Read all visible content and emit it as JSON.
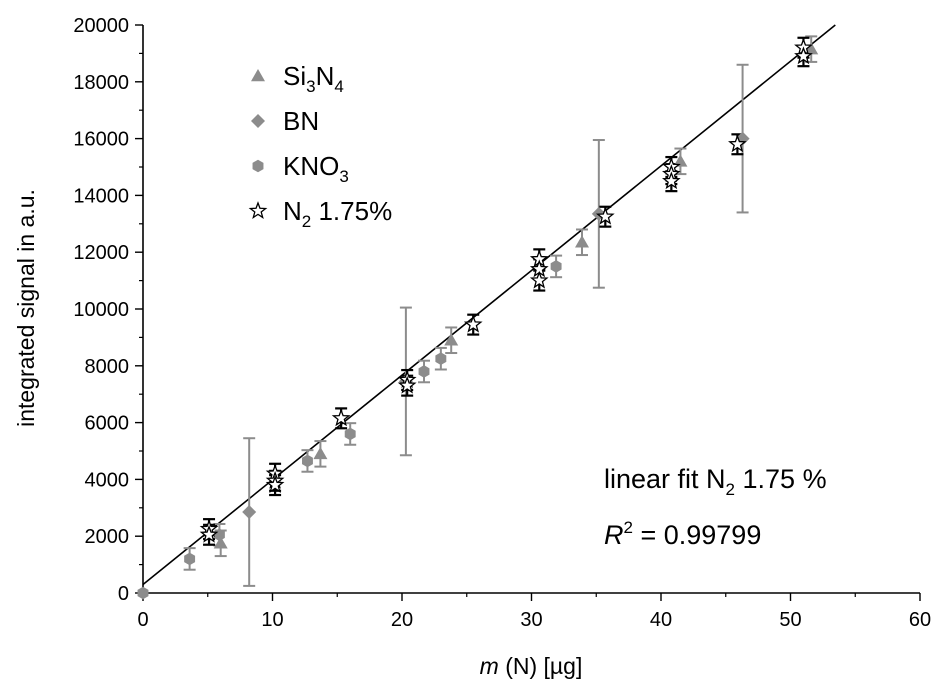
{
  "chart_data": {
    "type": "scatter",
    "xlabel": {
      "italic": "m",
      "rest": " (N) [µg]"
    },
    "ylabel": "integrated signal in a.u.",
    "xlim": [
      0,
      60
    ],
    "ylim": [
      0,
      20000
    ],
    "x_ticks": [
      0,
      10,
      20,
      30,
      40,
      50,
      60
    ],
    "y_ticks": [
      0,
      2000,
      4000,
      6000,
      8000,
      10000,
      12000,
      14000,
      16000,
      18000,
      20000
    ],
    "x_tick_labels": [
      "0",
      "10",
      "20",
      "30",
      "40",
      "50",
      "60"
    ],
    "y_tick_labels": [
      "0",
      "2000",
      "4000",
      "6000",
      "8000",
      "10000",
      "12000",
      "14000",
      "16000",
      "18000",
      "20000"
    ],
    "grid": false,
    "legend_position": "top-left",
    "series": [
      {
        "name": {
          "base": "Si",
          "sub1": "3",
          "mid": "N",
          "sub2": "4"
        },
        "marker": "triangle",
        "color": "#8c8c8c",
        "points": [
          {
            "x": 6.0,
            "y": 1750,
            "err": 450
          },
          {
            "x": 13.7,
            "y": 4900,
            "err": 450
          },
          {
            "x": 23.8,
            "y": 8900,
            "err": 450
          },
          {
            "x": 33.9,
            "y": 12350,
            "err": 450
          },
          {
            "x": 41.5,
            "y": 15200,
            "err": 450
          },
          {
            "x": 51.6,
            "y": 19150,
            "err": 450
          }
        ]
      },
      {
        "name": {
          "base": "BN",
          "sub1": "",
          "mid": "",
          "sub2": ""
        },
        "marker": "diamond",
        "color": "#8c8c8c",
        "points": [
          {
            "x": 8.2,
            "y": 2850,
            "err": 2600
          },
          {
            "x": 20.3,
            "y": 7450,
            "err": 2600
          },
          {
            "x": 35.2,
            "y": 13350,
            "err": 2600
          },
          {
            "x": 46.3,
            "y": 16000,
            "err": 2600
          }
        ]
      },
      {
        "name": {
          "base": "KNO",
          "sub1": "",
          "mid": "",
          "sub2": "3"
        },
        "marker": "hexagon",
        "color": "#8c8c8c",
        "points": [
          {
            "x": 0.0,
            "y": 0,
            "err": 0
          },
          {
            "x": 3.6,
            "y": 1200,
            "err": 380
          },
          {
            "x": 5.9,
            "y": 2050,
            "err": 380
          },
          {
            "x": 12.7,
            "y": 4650,
            "err": 380
          },
          {
            "x": 16.0,
            "y": 5600,
            "err": 380
          },
          {
            "x": 21.7,
            "y": 7800,
            "err": 380
          },
          {
            "x": 23.0,
            "y": 8250,
            "err": 380
          },
          {
            "x": 31.9,
            "y": 11500,
            "err": 380
          }
        ]
      },
      {
        "name": {
          "base": "N",
          "sub1": "",
          "mid": "",
          "sub2": "2",
          "suffix": " 1.75%"
        },
        "marker": "star",
        "color": "#000000",
        "points": [
          {
            "x": 5.1,
            "y": 2250,
            "err": 350
          },
          {
            "x": 5.1,
            "y": 2050,
            "err": 350
          },
          {
            "x": 10.2,
            "y": 4200,
            "err": 350
          },
          {
            "x": 10.2,
            "y": 3950,
            "err": 350
          },
          {
            "x": 10.2,
            "y": 3800,
            "err": 350
          },
          {
            "x": 15.3,
            "y": 6150,
            "err": 350
          },
          {
            "x": 20.4,
            "y": 7500,
            "err": 350
          },
          {
            "x": 20.4,
            "y": 7300,
            "err": 350
          },
          {
            "x": 25.5,
            "y": 9450,
            "err": 350
          },
          {
            "x": 30.6,
            "y": 11750,
            "err": 350
          },
          {
            "x": 30.6,
            "y": 11400,
            "err": 350
          },
          {
            "x": 30.6,
            "y": 11000,
            "err": 350
          },
          {
            "x": 35.7,
            "y": 13250,
            "err": 350
          },
          {
            "x": 40.8,
            "y": 15000,
            "err": 350
          },
          {
            "x": 40.8,
            "y": 14750,
            "err": 350
          },
          {
            "x": 40.8,
            "y": 14500,
            "err": 350
          },
          {
            "x": 45.9,
            "y": 15800,
            "err": 350
          },
          {
            "x": 51.0,
            "y": 19200,
            "err": 350
          },
          {
            "x": 51.0,
            "y": 18900,
            "err": 350
          }
        ]
      }
    ],
    "fit_line": {
      "slope": 368.5,
      "intercept": 300,
      "x_start": 0,
      "x_end": 55
    },
    "annotation": {
      "fit_prefix": "linear fit N",
      "fit_sub": "2",
      "fit_suffix": " 1.75 %",
      "r2_base": "R",
      "r2_sup": "2",
      "r2_value": " = 0.99799"
    }
  }
}
